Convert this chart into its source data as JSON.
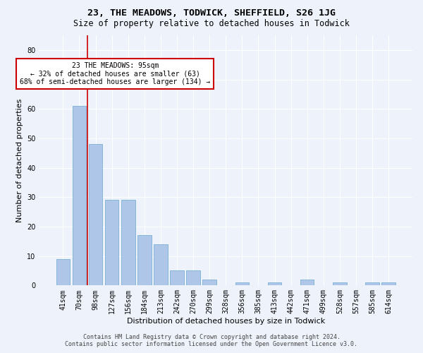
{
  "title": "23, THE MEADOWS, TODWICK, SHEFFIELD, S26 1JG",
  "subtitle": "Size of property relative to detached houses in Todwick",
  "xlabel": "Distribution of detached houses by size in Todwick",
  "ylabel": "Number of detached properties",
  "categories": [
    "41sqm",
    "70sqm",
    "98sqm",
    "127sqm",
    "156sqm",
    "184sqm",
    "213sqm",
    "242sqm",
    "270sqm",
    "299sqm",
    "328sqm",
    "356sqm",
    "385sqm",
    "413sqm",
    "442sqm",
    "471sqm",
    "499sqm",
    "528sqm",
    "557sqm",
    "585sqm",
    "614sqm"
  ],
  "values": [
    9,
    61,
    48,
    29,
    29,
    17,
    14,
    5,
    5,
    2,
    0,
    1,
    0,
    1,
    0,
    2,
    0,
    1,
    0,
    1,
    1
  ],
  "bar_color": "#aec6e8",
  "bar_edge_color": "#7aafd4",
  "ylim": [
    0,
    85
  ],
  "yticks": [
    0,
    10,
    20,
    30,
    40,
    50,
    60,
    70,
    80
  ],
  "property_line_index": 1.5,
  "annotation_text": "23 THE MEADOWS: 95sqm\n← 32% of detached houses are smaller (63)\n68% of semi-detached houses are larger (134) →",
  "annotation_box_color": "#ffffff",
  "annotation_box_edge": "#cc0000",
  "property_line_color": "#cc0000",
  "footer_line1": "Contains HM Land Registry data © Crown copyright and database right 2024.",
  "footer_line2": "Contains public sector information licensed under the Open Government Licence v3.0.",
  "background_color": "#eef2fb",
  "grid_color": "#ffffff",
  "title_fontsize": 9.5,
  "subtitle_fontsize": 8.5,
  "tick_fontsize": 7,
  "ylabel_fontsize": 8,
  "xlabel_fontsize": 8,
  "annotation_fontsize": 7,
  "footer_fontsize": 6
}
